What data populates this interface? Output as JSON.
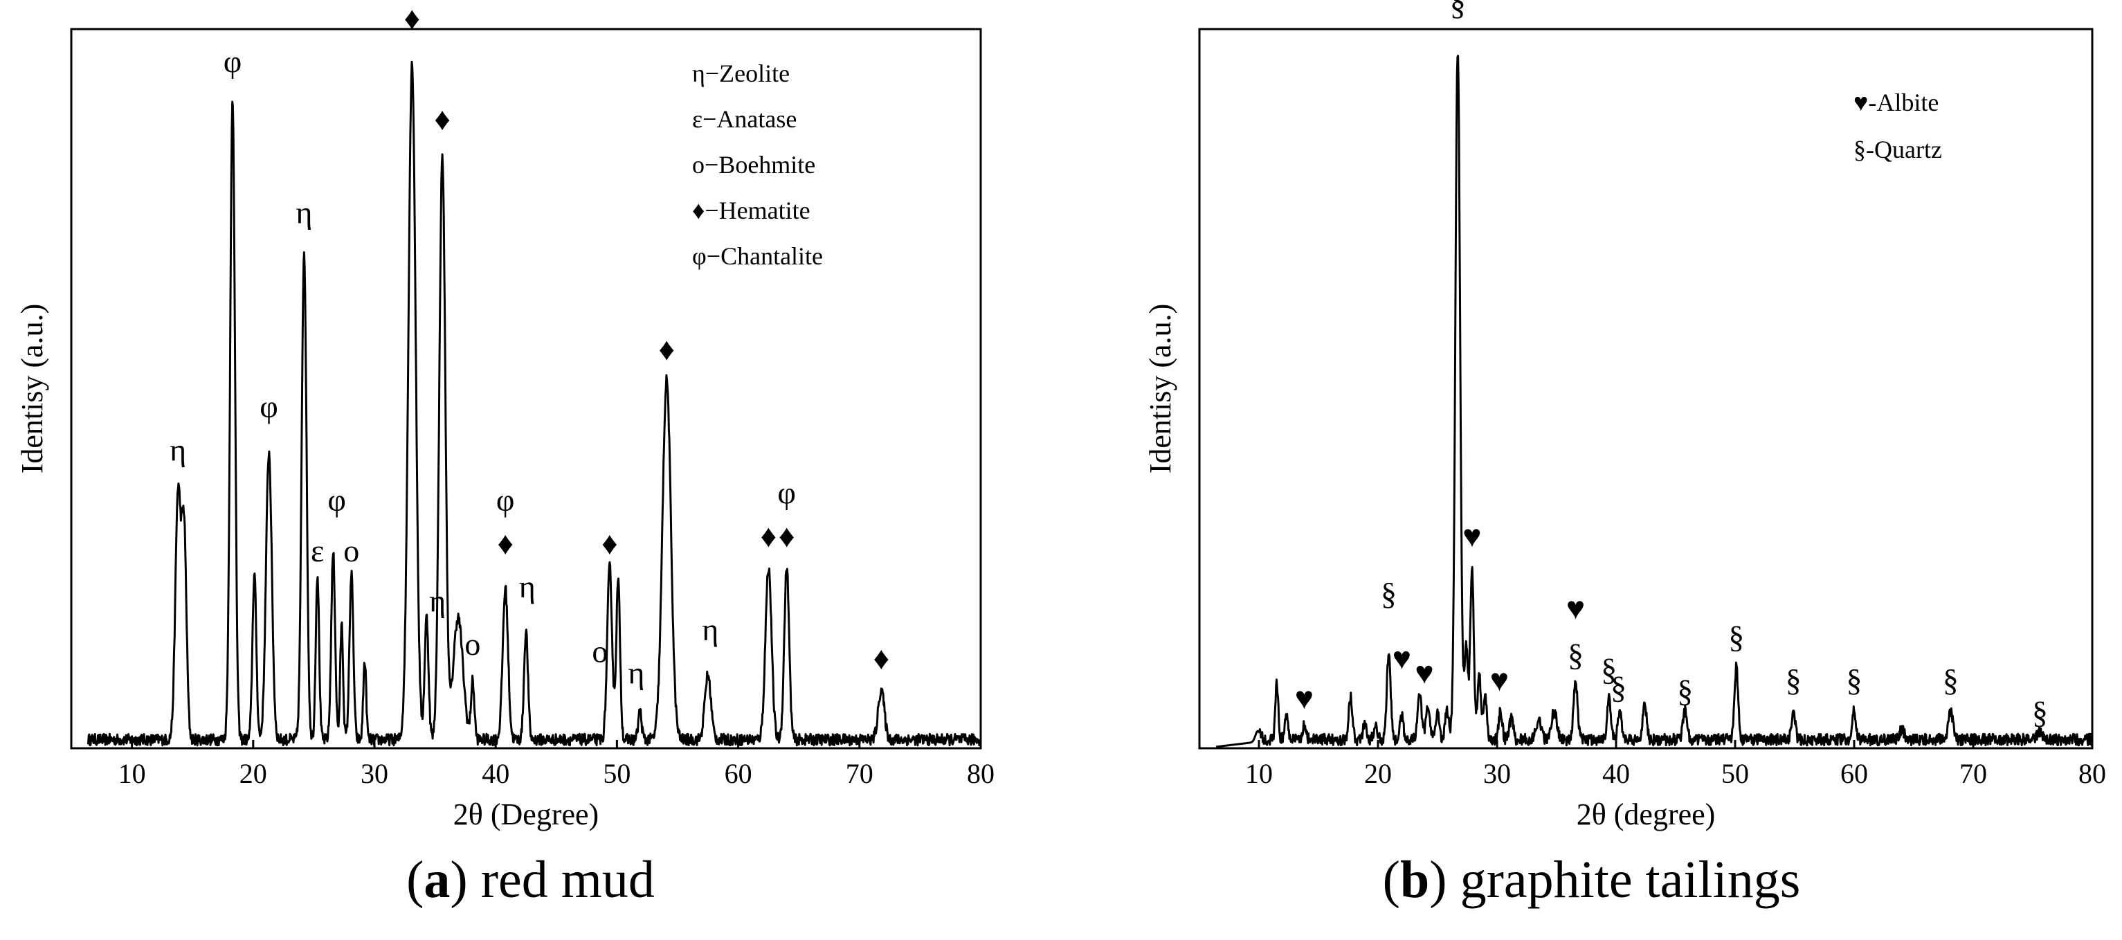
{
  "chart_data": [
    {
      "id": "a",
      "type": "line",
      "title": "",
      "caption_letter": "a",
      "caption_text": "red mud",
      "xlabel": "2θ (Degree)",
      "ylabel": "Identisy (a.u.)",
      "xlim": [
        5,
        80
      ],
      "ylim": [
        0,
        100
      ],
      "xticks": [
        10,
        20,
        30,
        40,
        50,
        60,
        70,
        80
      ],
      "baseline": 1.2,
      "peaks": [
        {
          "x": 13.8,
          "h": 34,
          "w": 0.22
        },
        {
          "x": 14.3,
          "h": 29,
          "w": 0.2
        },
        {
          "x": 18.3,
          "h": 89,
          "w": 0.2
        },
        {
          "x": 20.1,
          "h": 23,
          "w": 0.16
        },
        {
          "x": 21.3,
          "h": 40,
          "w": 0.24
        },
        {
          "x": 24.2,
          "h": 68,
          "w": 0.2
        },
        {
          "x": 25.3,
          "h": 23,
          "w": 0.14
        },
        {
          "x": 26.6,
          "h": 26,
          "w": 0.16
        },
        {
          "x": 27.3,
          "h": 16,
          "w": 0.12
        },
        {
          "x": 28.1,
          "h": 23,
          "w": 0.16
        },
        {
          "x": 29.2,
          "h": 11,
          "w": 0.12
        },
        {
          "x": 33.1,
          "h": 94,
          "w": 0.3
        },
        {
          "x": 34.3,
          "h": 17,
          "w": 0.16
        },
        {
          "x": 35.6,
          "h": 81,
          "w": 0.25
        },
        {
          "x": 36.9,
          "h": 17,
          "w": 0.4
        },
        {
          "x": 38.1,
          "h": 8,
          "w": 0.14
        },
        {
          "x": 40.8,
          "h": 21,
          "w": 0.22
        },
        {
          "x": 42.5,
          "h": 15,
          "w": 0.16
        },
        {
          "x": 49.4,
          "h": 24,
          "w": 0.2
        },
        {
          "x": 50.1,
          "h": 22,
          "w": 0.16
        },
        {
          "x": 51.9,
          "h": 4,
          "w": 0.14
        },
        {
          "x": 54.1,
          "h": 50,
          "w": 0.35
        },
        {
          "x": 57.5,
          "h": 9,
          "w": 0.25
        },
        {
          "x": 62.5,
          "h": 24,
          "w": 0.25
        },
        {
          "x": 64.0,
          "h": 24,
          "w": 0.2
        },
        {
          "x": 71.8,
          "h": 7,
          "w": 0.25
        }
      ],
      "peak_labels": [
        {
          "x": 13.8,
          "y": 40,
          "text": "η"
        },
        {
          "x": 18.3,
          "y": 94,
          "text": "φ"
        },
        {
          "x": 21.3,
          "y": 46,
          "text": "φ"
        },
        {
          "x": 24.2,
          "y": 73,
          "text": "η"
        },
        {
          "x": 25.3,
          "y": 26,
          "text": "ε"
        },
        {
          "x": 26.9,
          "y": 33,
          "text": "φ"
        },
        {
          "x": 28.1,
          "y": 26,
          "text": "o"
        },
        {
          "x": 33.1,
          "y": 100,
          "text": "♦"
        },
        {
          "x": 35.6,
          "y": 86,
          "text": "♦"
        },
        {
          "x": 35.2,
          "y": 19,
          "text": "η"
        },
        {
          "x": 38.1,
          "y": 13,
          "text": "o"
        },
        {
          "x": 40.8,
          "y": 33,
          "text": "φ"
        },
        {
          "x": 40.8,
          "y": 27,
          "text": "♦"
        },
        {
          "x": 42.6,
          "y": 21,
          "text": "η"
        },
        {
          "x": 49.4,
          "y": 27,
          "text": "♦"
        },
        {
          "x": 48.6,
          "y": 12,
          "text": "o"
        },
        {
          "x": 51.6,
          "y": 9,
          "text": "η"
        },
        {
          "x": 54.1,
          "y": 54,
          "text": "♦"
        },
        {
          "x": 57.7,
          "y": 15,
          "text": "η"
        },
        {
          "x": 62.5,
          "y": 28,
          "text": "♦"
        },
        {
          "x": 64.0,
          "y": 28,
          "text": "♦"
        },
        {
          "x": 64.0,
          "y": 34,
          "text": "φ"
        },
        {
          "x": 71.8,
          "y": 11,
          "text": "♦"
        }
      ],
      "legend": [
        "η−Zeolite",
        "ε−Anatase",
        "o−Boehmite",
        "♦−Hematite",
        "φ−Chantalite"
      ],
      "legend_position": "top-right"
    },
    {
      "id": "b",
      "type": "line",
      "title": "",
      "caption_letter": "b",
      "caption_text": "graphite tailings",
      "xlabel": "2θ (degree)",
      "ylabel": "Identisy (a.u.)",
      "xlim": [
        5,
        80
      ],
      "ylim": [
        0,
        100
      ],
      "xticks": [
        10,
        20,
        30,
        40,
        50,
        60,
        70,
        80
      ],
      "baseline": 1.2,
      "peaks": [
        {
          "x": 9.9,
          "h": 1.5,
          "w": 0.2
        },
        {
          "x": 11.5,
          "h": 8,
          "w": 0.12
        },
        {
          "x": 12.3,
          "h": 3.5,
          "w": 0.14
        },
        {
          "x": 13.8,
          "h": 2,
          "w": 0.15
        },
        {
          "x": 17.7,
          "h": 6,
          "w": 0.16
        },
        {
          "x": 18.9,
          "h": 2.5,
          "w": 0.14
        },
        {
          "x": 19.8,
          "h": 2.5,
          "w": 0.14
        },
        {
          "x": 20.9,
          "h": 12,
          "w": 0.16
        },
        {
          "x": 22.0,
          "h": 3.5,
          "w": 0.14
        },
        {
          "x": 23.5,
          "h": 6,
          "w": 0.18
        },
        {
          "x": 24.2,
          "h": 5,
          "w": 0.15
        },
        {
          "x": 25.0,
          "h": 4,
          "w": 0.15
        },
        {
          "x": 25.8,
          "h": 4,
          "w": 0.15
        },
        {
          "x": 26.7,
          "h": 96,
          "w": 0.2
        },
        {
          "x": 27.4,
          "h": 13,
          "w": 0.15
        },
        {
          "x": 27.9,
          "h": 24,
          "w": 0.15
        },
        {
          "x": 28.5,
          "h": 9,
          "w": 0.15
        },
        {
          "x": 29.0,
          "h": 6,
          "w": 0.14
        },
        {
          "x": 30.3,
          "h": 4,
          "w": 0.15
        },
        {
          "x": 31.2,
          "h": 3,
          "w": 0.15
        },
        {
          "x": 33.5,
          "h": 3,
          "w": 0.2
        },
        {
          "x": 34.8,
          "h": 4,
          "w": 0.22
        },
        {
          "x": 36.6,
          "h": 8,
          "w": 0.16
        },
        {
          "x": 39.4,
          "h": 6,
          "w": 0.15
        },
        {
          "x": 40.3,
          "h": 4,
          "w": 0.15
        },
        {
          "x": 42.4,
          "h": 5,
          "w": 0.16
        },
        {
          "x": 45.8,
          "h": 4,
          "w": 0.18
        },
        {
          "x": 50.1,
          "h": 10,
          "w": 0.16
        },
        {
          "x": 54.9,
          "h": 4,
          "w": 0.16
        },
        {
          "x": 60.0,
          "h": 4,
          "w": 0.16
        },
        {
          "x": 64.0,
          "h": 1.5,
          "w": 0.2
        },
        {
          "x": 68.1,
          "h": 4,
          "w": 0.2
        },
        {
          "x": 75.6,
          "h": 1,
          "w": 0.2
        }
      ],
      "peak_labels": [
        {
          "x": 26.7,
          "y": 102,
          "text": "§"
        },
        {
          "x": 20.9,
          "y": 20,
          "text": "§"
        },
        {
          "x": 27.9,
          "y": 28,
          "text": "♥"
        },
        {
          "x": 13.8,
          "y": 5.5,
          "text": "♥"
        },
        {
          "x": 22.0,
          "y": 11,
          "text": "♥"
        },
        {
          "x": 23.9,
          "y": 9,
          "text": "♥"
        },
        {
          "x": 30.2,
          "y": 8,
          "text": "♥"
        },
        {
          "x": 36.6,
          "y": 18,
          "text": "♥"
        },
        {
          "x": 36.6,
          "y": 11.5,
          "text": "§"
        },
        {
          "x": 39.4,
          "y": 9.5,
          "text": "§"
        },
        {
          "x": 40.2,
          "y": 7,
          "text": "§"
        },
        {
          "x": 45.8,
          "y": 6.5,
          "text": "§"
        },
        {
          "x": 50.1,
          "y": 14,
          "text": "§"
        },
        {
          "x": 54.9,
          "y": 8,
          "text": "§"
        },
        {
          "x": 60.0,
          "y": 8,
          "text": "§"
        },
        {
          "x": 68.1,
          "y": 8,
          "text": "§"
        },
        {
          "x": 75.6,
          "y": 3.5,
          "text": "§"
        }
      ],
      "legend": [
        "♥-Albite",
        "§-Quartz"
      ],
      "legend_position": "top-right"
    }
  ]
}
